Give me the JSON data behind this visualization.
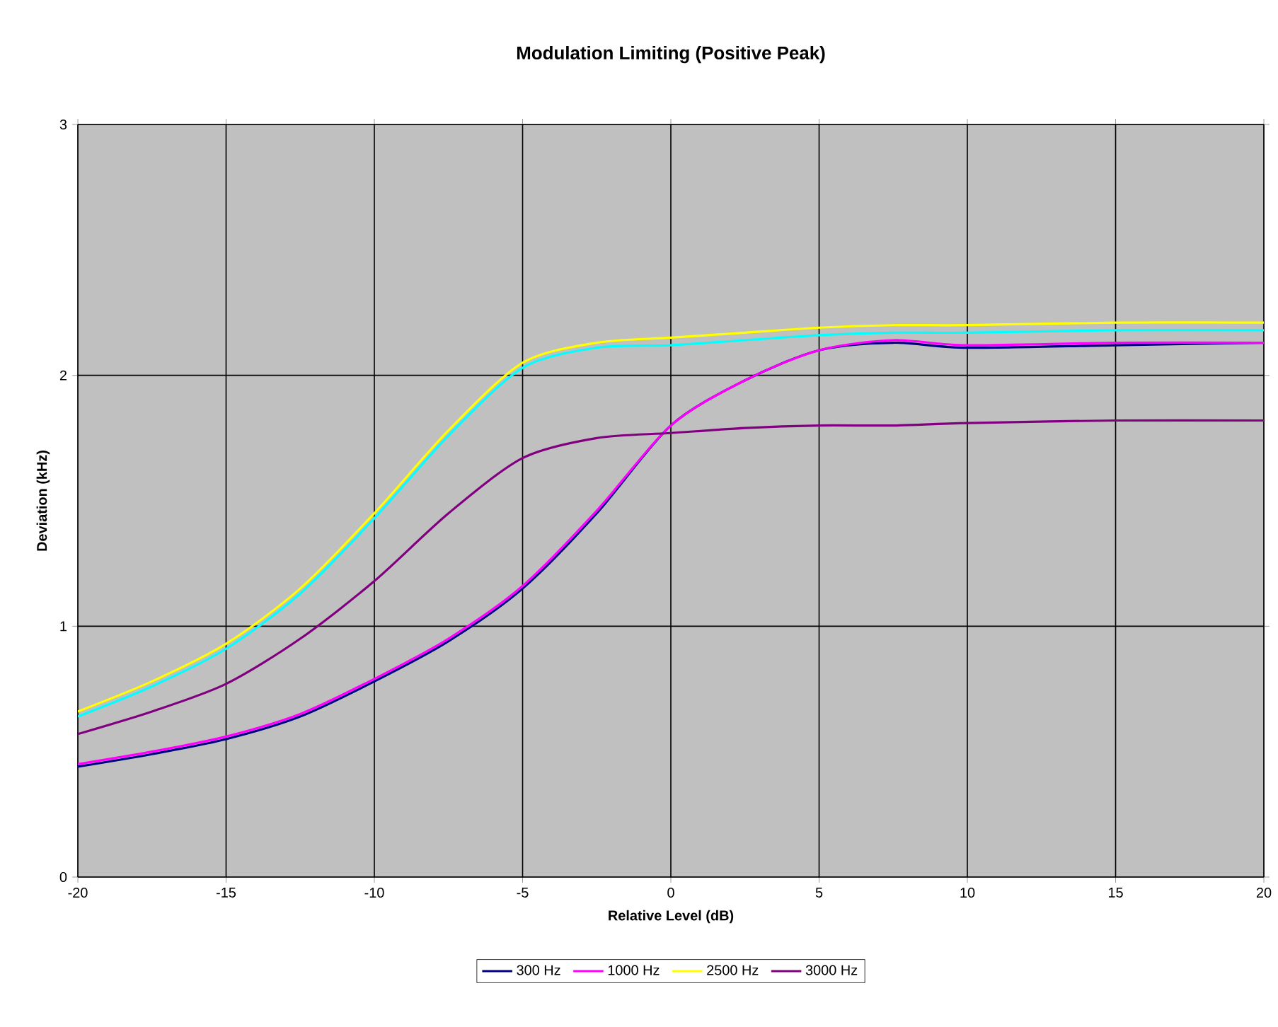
{
  "chart_data": {
    "type": "line",
    "title": "**Modulation Limiting (Positive Peak)**",
    "xlabel": "**Relative Level (dB)**",
    "ylabel": "**Deviation (kHz)**",
    "x": [
      -20,
      -17.5,
      -15,
      -12.5,
      -10,
      -7.5,
      -5,
      -2.5,
      0,
      2.5,
      5,
      7.5,
      10,
      15,
      20
    ],
    "series": [
      {
        "name": "300 Hz",
        "color": "#000080",
        "values": [
          0.44,
          0.49,
          0.55,
          0.64,
          0.78,
          0.94,
          1.15,
          1.45,
          1.8,
          1.98,
          2.1,
          2.13,
          2.11,
          2.12,
          2.13
        ]
      },
      {
        "name": "1000 Hz",
        "color": "#ff00ff",
        "values": [
          0.45,
          0.5,
          0.56,
          0.65,
          0.79,
          0.95,
          1.16,
          1.46,
          1.8,
          1.98,
          2.1,
          2.14,
          2.12,
          2.13,
          2.13
        ]
      },
      {
        "name": "2500 Hz",
        "color": "#ffff00",
        "values": [
          0.66,
          0.78,
          0.93,
          1.15,
          1.45,
          1.78,
          2.05,
          2.13,
          2.15,
          2.17,
          2.19,
          2.2,
          2.2,
          2.21,
          2.21
        ]
      },
      {
        "color": "#00ffff",
        "values": [
          0.64,
          0.76,
          0.91,
          1.13,
          1.43,
          1.76,
          2.03,
          2.11,
          2.12,
          2.14,
          2.16,
          2.17,
          2.17,
          2.18,
          2.18
        ]
      },
      {
        "name": "3000 Hz",
        "color": "#800080",
        "values": [
          0.57,
          0.66,
          0.77,
          0.95,
          1.18,
          1.45,
          1.67,
          1.75,
          1.77,
          1.79,
          1.8,
          1.8,
          1.81,
          1.82,
          1.82
        ]
      }
    ],
    "xlim": [
      -20,
      20
    ],
    "xticks": [
      -20,
      -15,
      -10,
      -5,
      0,
      5,
      10,
      15,
      20
    ],
    "ylim": [
      0,
      3
    ],
    "yticks": [
      0,
      1,
      2,
      3
    ],
    "grid": true,
    "legend": "bottom",
    "marker": "none",
    "line_style": "solid"
  }
}
